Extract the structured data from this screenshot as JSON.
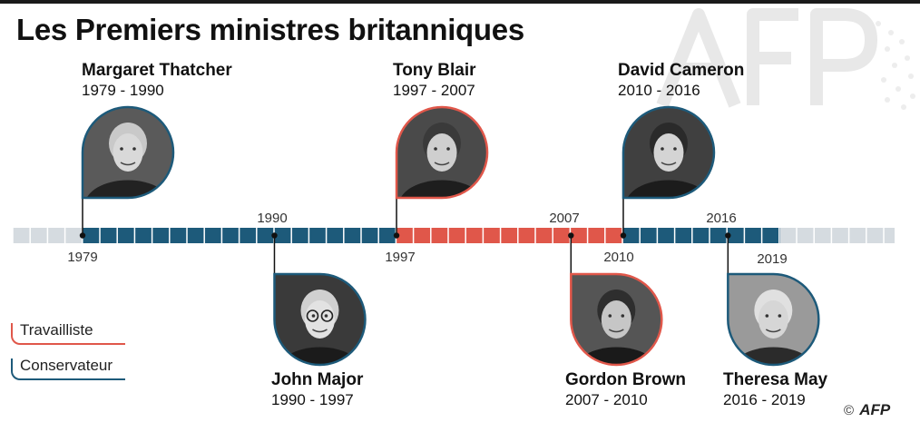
{
  "title": "Les Premiers ministres britanniques",
  "colors": {
    "conservative": "#1d5a7a",
    "labour": "#e0574a",
    "track_grey": "#d5dbe0",
    "text": "#111111"
  },
  "timeline": {
    "start": 1979,
    "end": 2019,
    "segments": [
      {
        "party": "conservative",
        "from": 1979,
        "to": 1997
      },
      {
        "party": "labour",
        "from": 1997,
        "to": 2010
      },
      {
        "party": "conservative",
        "from": 2010,
        "to": 2019
      }
    ],
    "labels_above": [
      "1990",
      "2007",
      "2016"
    ],
    "labels_below": [
      "1979",
      "1997",
      "2010",
      "2019"
    ]
  },
  "ministers": [
    {
      "name": "Margaret Thatcher",
      "years": "1979 - 1990",
      "start": 1979,
      "party": "conservative",
      "position": "above",
      "portrait": "thatcher-portrait"
    },
    {
      "name": "John Major",
      "years": "1990 - 1997",
      "start": 1990,
      "party": "conservative",
      "position": "below",
      "portrait": "major-portrait"
    },
    {
      "name": "Tony Blair",
      "years": "1997 - 2007",
      "start": 1997,
      "party": "labour",
      "position": "above",
      "portrait": "blair-portrait"
    },
    {
      "name": "Gordon Brown",
      "years": "2007 - 2010",
      "start": 2007,
      "party": "labour",
      "position": "below",
      "portrait": "brown-portrait"
    },
    {
      "name": "David Cameron",
      "years": "2010 - 2016",
      "start": 2010,
      "party": "conservative",
      "position": "above",
      "portrait": "cameron-portrait"
    },
    {
      "name": "Theresa May",
      "years": "2016 - 2019",
      "start": 2016,
      "party": "conservative",
      "position": "below",
      "portrait": "may-portrait"
    }
  ],
  "legend": {
    "labour": "Travailliste",
    "conservative": "Conservateur"
  },
  "credit": {
    "symbol": "©",
    "logo": "AFP"
  }
}
